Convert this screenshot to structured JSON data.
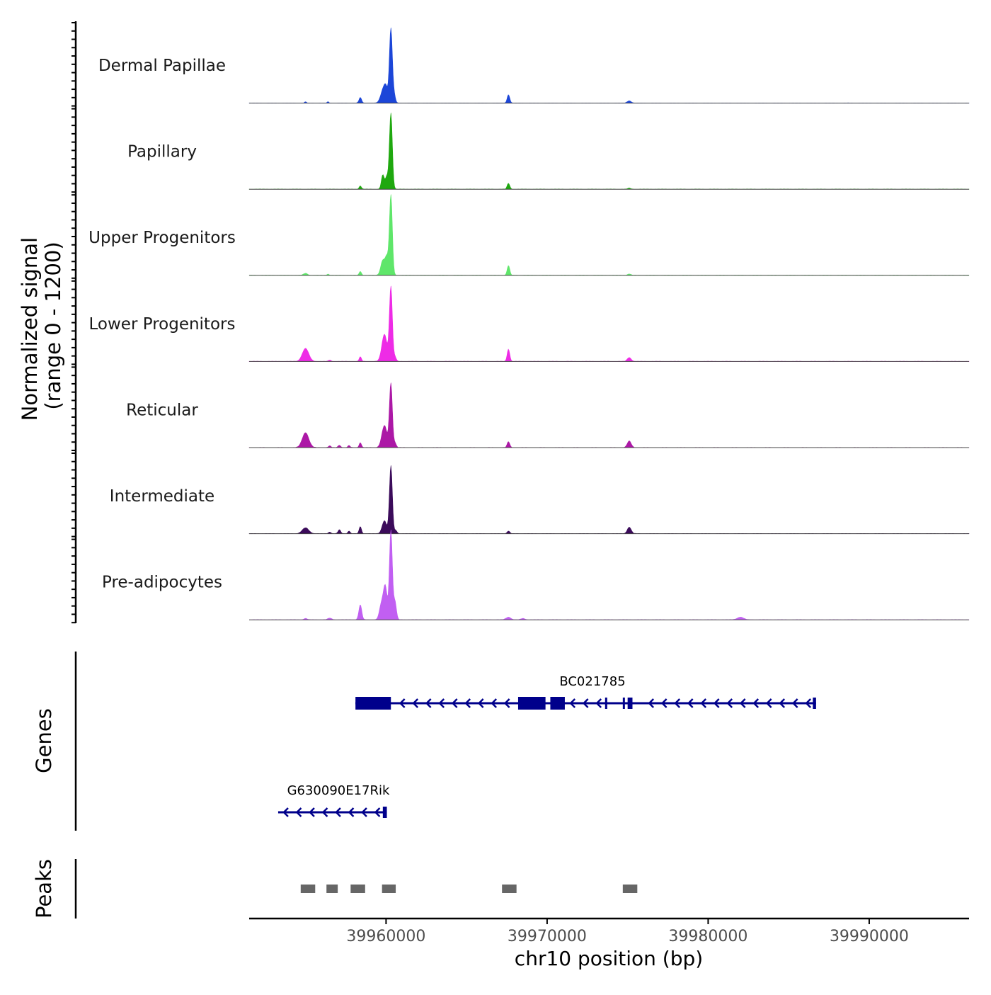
{
  "chart_data": {
    "type": "area",
    "chromosome": "chr10",
    "xlabel": "chr10 position (bp)",
    "xlim": [
      39951500,
      39996200
    ],
    "x_ticks": [
      39960000,
      39970000,
      39980000,
      39990000
    ],
    "x_tick_labels": [
      "39960000",
      "39970000",
      "39980000",
      "39990000"
    ],
    "coverage": {
      "ylabel_line1": "Normalized signal",
      "ylabel_line2": "(range 0 - 1200)",
      "ylim": [
        0,
        1200
      ],
      "tracks": [
        {
          "name": "Dermal Papillae",
          "color": "#1c46d8",
          "peaks": [
            [
              39955000,
              18,
              60
            ],
            [
              39956400,
              20,
              50
            ],
            [
              39958400,
              85,
              80
            ],
            [
              39959800,
              180,
              150
            ],
            [
              39960000,
              210,
              120
            ],
            [
              39960300,
              1150,
              90
            ],
            [
              39960500,
              120,
              80
            ],
            [
              39967600,
              130,
              80
            ],
            [
              39975100,
              35,
              120
            ]
          ]
        },
        {
          "name": "Papillary",
          "color": "#1fa80f",
          "peaks": [
            [
              39958400,
              50,
              70
            ],
            [
              39959800,
              220,
              90
            ],
            [
              39960050,
              190,
              90
            ],
            [
              39960300,
              1180,
              90
            ],
            [
              39967600,
              90,
              80
            ],
            [
              39975100,
              15,
              100
            ]
          ]
        },
        {
          "name": "Upper Progenitors",
          "color": "#5fe66a",
          "peaks": [
            [
              39955000,
              30,
              120
            ],
            [
              39956400,
              20,
              60
            ],
            [
              39958400,
              60,
              70
            ],
            [
              39959800,
              230,
              130
            ],
            [
              39960050,
              260,
              100
            ],
            [
              39960300,
              1240,
              90
            ],
            [
              39967600,
              150,
              80
            ],
            [
              39975100,
              20,
              100
            ]
          ]
        },
        {
          "name": "Lower Progenitors",
          "color": "#ee2be6",
          "peaks": [
            [
              39955000,
              200,
              200
            ],
            [
              39956500,
              20,
              80
            ],
            [
              39958400,
              70,
              70
            ],
            [
              39959900,
              420,
              160
            ],
            [
              39960300,
              1150,
              90
            ],
            [
              39960550,
              70,
              80
            ],
            [
              39967600,
              190,
              80
            ],
            [
              39975100,
              60,
              120
            ]
          ]
        },
        {
          "name": "Reticular",
          "color": "#ac18a6",
          "peaks": [
            [
              39955000,
              230,
              200
            ],
            [
              39956500,
              25,
              80
            ],
            [
              39957100,
              35,
              80
            ],
            [
              39957700,
              30,
              70
            ],
            [
              39958400,
              75,
              70
            ],
            [
              39959900,
              340,
              160
            ],
            [
              39960300,
              990,
              90
            ],
            [
              39960550,
              70,
              80
            ],
            [
              39967600,
              90,
              80
            ],
            [
              39975100,
              100,
              120
            ]
          ]
        },
        {
          "name": "Intermediate",
          "color": "#3b0b5a",
          "peaks": [
            [
              39955000,
              90,
              200
            ],
            [
              39956500,
              25,
              80
            ],
            [
              39957100,
              60,
              80
            ],
            [
              39957700,
              40,
              70
            ],
            [
              39958400,
              110,
              70
            ],
            [
              39959900,
              200,
              140
            ],
            [
              39960300,
              1050,
              90
            ],
            [
              39960600,
              50,
              80
            ],
            [
              39967600,
              40,
              80
            ],
            [
              39975100,
              100,
              120
            ]
          ]
        },
        {
          "name": "Pre-adipocytes",
          "color": "#c15ff2",
          "peaks": [
            [
              39955000,
              20,
              100
            ],
            [
              39956500,
              25,
              120
            ],
            [
              39958400,
              230,
              90
            ],
            [
              39959700,
              220,
              120
            ],
            [
              39959950,
              520,
              120
            ],
            [
              39960300,
              1380,
              90
            ],
            [
              39960550,
              280,
              90
            ],
            [
              39967600,
              40,
              150
            ],
            [
              39968500,
              20,
              120
            ],
            [
              39982000,
              40,
              200
            ]
          ]
        }
      ]
    },
    "genes": {
      "label": "Genes",
      "color": "#00008b",
      "items": [
        {
          "name": "BC021785",
          "start": 39958100,
          "end": 39986700,
          "strand": "-",
          "exons": [
            [
              39958100,
              39960300
            ],
            [
              39968200,
              39969900
            ],
            [
              39970200,
              39971100
            ],
            [
              39973600,
              39973700
            ],
            [
              39974700,
              39974800
            ],
            [
              39975000,
              39975300
            ],
            [
              39986500,
              39986700
            ]
          ]
        },
        {
          "name": "G630090E17Rik",
          "start": 39953300,
          "end": 39960050,
          "strand": "-",
          "exons": [
            [
              39959800,
              39960050
            ]
          ]
        }
      ]
    },
    "peaks": {
      "label": "Peaks",
      "color": "#666666",
      "regions": [
        [
          39954700,
          39955600
        ],
        [
          39956300,
          39957000
        ],
        [
          39957800,
          39958700
        ],
        [
          39959750,
          39960600
        ],
        [
          39967200,
          39968100
        ],
        [
          39974700,
          39975600
        ]
      ]
    }
  }
}
